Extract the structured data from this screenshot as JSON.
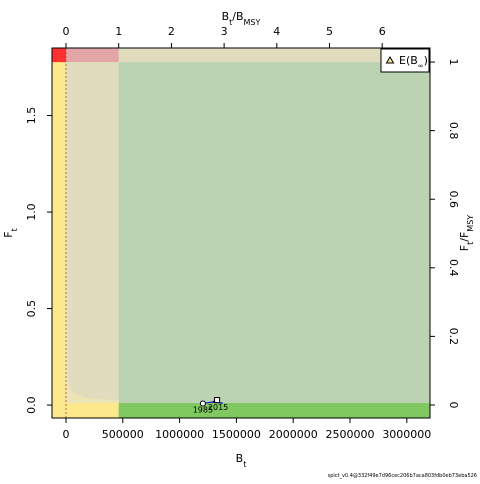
{
  "chart_data": {
    "type": "phase",
    "xlabel": [
      "B",
      "t"
    ],
    "ylabel": [
      "F",
      "t"
    ],
    "x2label": [
      "B",
      "t",
      "/B",
      "MSY"
    ],
    "y2label": [
      "F",
      "t",
      "/F",
      "MSY"
    ],
    "xlim": [
      -123000,
      3204000
    ],
    "xticks": [
      0,
      500000,
      1000000,
      1500000,
      2000000,
      2500000,
      3000000
    ],
    "ylim": [
      -0.067,
      1.85
    ],
    "yticks": [
      {
        "value": 0,
        "label": "0.0"
      },
      0.5,
      {
        "value": 1,
        "label": "1.0"
      },
      1.5
    ],
    "x2lim": [
      -0.266,
      6.907
    ],
    "x2ticks": [
      0,
      1,
      2,
      3,
      4,
      5,
      6
    ],
    "y2lim": [
      -0.038,
      1.041
    ],
    "y2ticks": [
      0,
      0.2,
      0.4,
      0.6,
      0.8,
      1
    ],
    "series": [
      {
        "name": "trajectory",
        "color": "#0000cc",
        "x": [
          1205000,
          1280000,
          1380000,
          1300000,
          1330000
        ],
        "y": [
          0.008,
          0.015,
          0.01,
          0.02,
          0.026
        ]
      }
    ],
    "annotations": [
      "1985",
      "2015"
    ],
    "legend": {
      "label": [
        "E(B",
        "∞",
        ")"
      ],
      "position": "top-right"
    },
    "footnote": "spict_v0.4@332f49e7d96cec206b7aca803fdb0eb73eba526"
  }
}
